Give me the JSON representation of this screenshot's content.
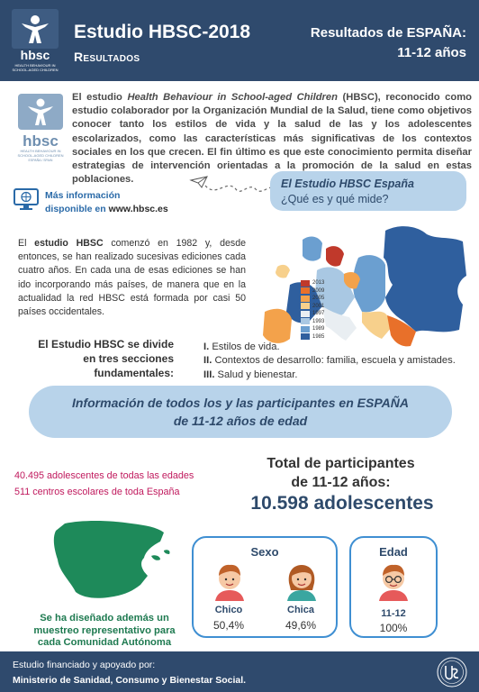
{
  "header": {
    "logo_text": "hbsc",
    "logo_sub1": "HEALTH BEHAVIOUR IN",
    "logo_sub2": "SCHOOL-AGED CHILDREN",
    "title": "Estudio HBSC-2018",
    "subtitle": "Resultados",
    "right_line1": "Resultados de ESPAÑA:",
    "right_line2": "11-12 años"
  },
  "intro": {
    "logo_text": "hbsc",
    "logo_sub1": "HEALTH BEHAVIOUR IN",
    "logo_sub2": "SCHOOL-AGED CHILDREN",
    "logo_sub3": "ESPAÑA / SPAIN",
    "part1": "El estudio ",
    "italic": "Health Behaviour in School-aged Children",
    "part2": " (HBSC), reconocido como estudio colaborador por la Organización Mundial de la Salud, tiene como objetivos conocer tanto los estilos de vida y la salud de las y los adolescentes escolarizados, como las características más significativas de los contextos sociales en los que crecen. El fin último es que este conocimiento permita diseñar estrategias de intervención orientadas a la promoción de la salud en estas poblaciones."
  },
  "more_info": {
    "line1": "Más información",
    "line2": "disponible en ",
    "url": "www.hbsc.es"
  },
  "bubble": {
    "line1": "El Estudio HBSC España",
    "line2": "¿Qué es y qué mide?"
  },
  "history": {
    "part1": "El ",
    "bold": "estudio HBSC",
    "part2": " comenzó en 1982 y, desde entonces, se han realizado sucesivas ediciones cada cuatro años. En cada una de esas ediciones se han ido incorporando más países, de manera que en la actualidad la red HBSC está formada por casi 50 países occidentales."
  },
  "map_legend": [
    "2013",
    "2009",
    "2005",
    "2001",
    "1997",
    "1993",
    "1989",
    "1985"
  ],
  "map_colors": [
    "#c0392b",
    "#e8702a",
    "#f3a24b",
    "#f7d08c",
    "#e9eef2",
    "#a9c8e3",
    "#6b9fd0",
    "#2f5f9e"
  ],
  "sections": {
    "left1": "El Estudio HBSC se divide",
    "left2": "en tres secciones",
    "left3": "fundamentales:",
    "items": [
      {
        "num": "I.",
        "text": "Estilos de vida."
      },
      {
        "num": "II.",
        "text": "Contextos de desarrollo: familia, escuela y amistades."
      },
      {
        "num": "III.",
        "text": "Salud y bienestar."
      }
    ]
  },
  "banner": {
    "line1": "Información de todos los y las participantes en ESPAÑA",
    "line2": "de 11-12 años de edad"
  },
  "totals": {
    "label1": "Total de participantes",
    "label2": "de 11-12 años:",
    "value": "10.598 adolescentes"
  },
  "stats": {
    "line1": "40.495 adolescentes de todas las edades",
    "line2": "511 centros escolares de toda España"
  },
  "note": {
    "line1": "Se ha diseñado además un",
    "line2": "muestreo representativo para",
    "line3": "cada Comunidad Autónoma"
  },
  "sexo": {
    "title": "Sexo",
    "male_label": "Chico",
    "male_pct": "50,4%",
    "female_label": "Chica",
    "female_pct": "49,6%"
  },
  "edad": {
    "title": "Edad",
    "label": "11-12",
    "pct": "100%"
  },
  "footer": {
    "line1": "Estudio financiado y apoyado por:",
    "line2": "Ministerio de Sanidad, Consumo y Bienestar Social."
  },
  "colors": {
    "navy": "#2f4a6d",
    "light_blue": "#b8d3ea",
    "accent_blue": "#3f8fd2",
    "magenta": "#c0195d",
    "green": "#1e7a50"
  }
}
